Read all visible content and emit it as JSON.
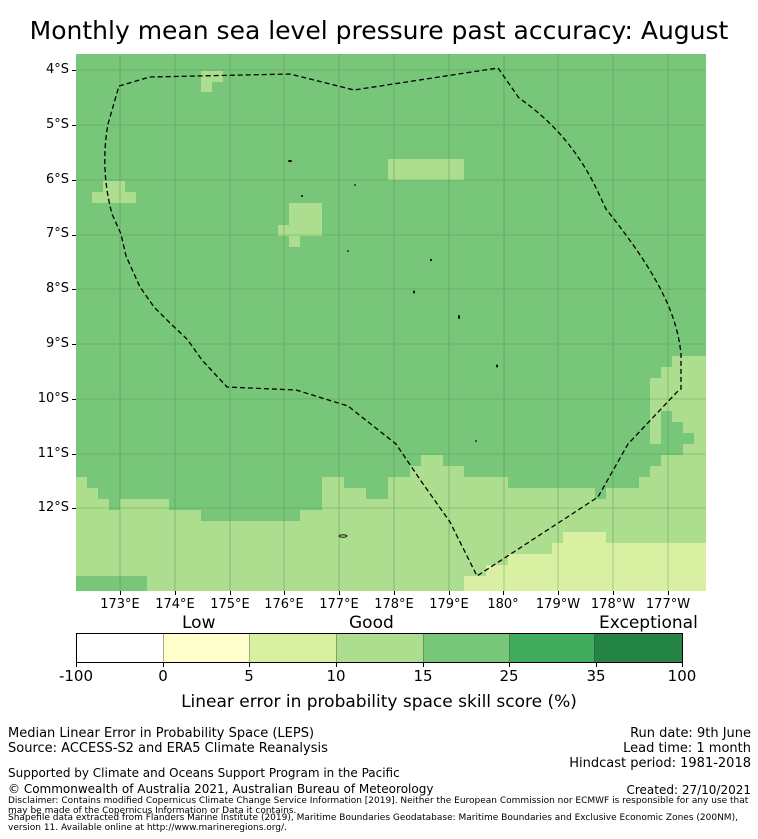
{
  "title": "Monthly mean sea level pressure past accuracy: August",
  "map": {
    "background_color": "#78c679",
    "lat_labels": [
      "4°S",
      "5°S",
      "6°S",
      "7°S",
      "8°S",
      "9°S",
      "10°S",
      "11°S",
      "12°S"
    ],
    "lon_labels": [
      "173°E",
      "174°E",
      "175°E",
      "176°E",
      "177°E",
      "178°E",
      "179°E",
      "180°",
      "179°W",
      "178°W",
      "177°W"
    ],
    "outline_style": "dashed"
  },
  "colorbar": {
    "categories": [
      "Low",
      "Good",
      "Exceptional"
    ],
    "tick_labels": [
      "-100",
      "0",
      "5",
      "10",
      "15",
      "25",
      "35",
      "100"
    ],
    "colors": [
      "#ffffff",
      "#ffffcc",
      "#d9f0a3",
      "#addd8e",
      "#78c679",
      "#41ab5d",
      "#238443"
    ],
    "label": "Linear error in probability space skill score (%)"
  },
  "footer": {
    "method": "Median Linear Error in Probability Space (LEPS)",
    "source": "Source: ACCESS-S2 and ERA5 Climate Reanalysis",
    "run_date": "Run date: 9th June",
    "lead_time": "Lead time: 1 month",
    "hindcast": "Hindcast period: 1981-2018",
    "support": "Supported by Climate and Oceans Support Program in the Pacific",
    "copyright": "© Commonwealth of Australia 2021, Australian Bureau of Meteorology",
    "created": "Created: 27/10/2021",
    "disclaimer": "Disclaimer: Contains modified Copernicus Climate Change Service Information [2019]. Neither the European Commission nor ECMWF is responsible for any use that may be made of the Copernicus Information or Data it contains.",
    "shapefile": "Shapefile data extracted from Flanders Marine Institute (2019), Maritime Boundaries Geodatabase: Maritime Boundaries and Exclusive Economic Zones (200NM), version 11. Available online at http://www.marineregions.org/."
  }
}
